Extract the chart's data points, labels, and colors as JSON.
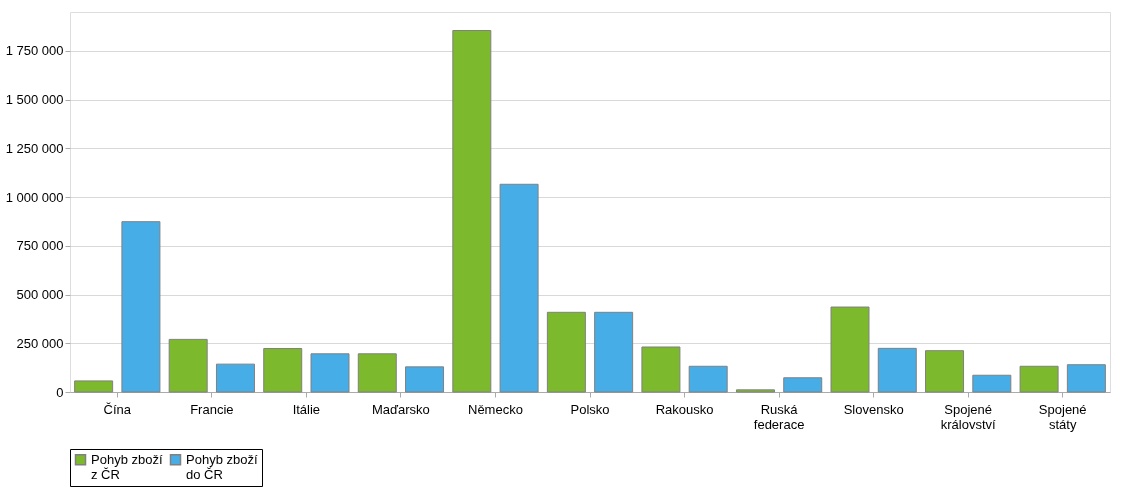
{
  "chart_data": {
    "type": "bar",
    "categories": [
      "Čína",
      "Francie",
      "Itálie",
      "Maďarsko",
      "Německo",
      "Polsko",
      "Rakousko",
      "Ruská federace",
      "Slovensko",
      "Spojené království",
      "Spojené státy"
    ],
    "series": [
      {
        "name": "Pohyb zboží z ČR",
        "color": "#7db92c",
        "values": [
          57000,
          270000,
          223000,
          196000,
          1855000,
          409000,
          231000,
          11000,
          436000,
          212000,
          132000
        ]
      },
      {
        "name": "Pohyb zboží do ČR",
        "color": "#47ade6",
        "values": [
          874000,
          143000,
          196000,
          129000,
          1066000,
          409000,
          132000,
          73000,
          224000,
          86000,
          140000
        ]
      }
    ],
    "ylim": [
      0,
      1950000
    ],
    "yticks": [
      0,
      {
        "value": 250000,
        "label": "250 000"
      },
      {
        "value": 500000,
        "label": "500 000"
      },
      {
        "value": 750000,
        "label": "750 000"
      },
      {
        "value": 1000000,
        "label": "1 000 000"
      },
      {
        "value": 1250000,
        "label": "1 250 000"
      },
      {
        "value": 1500000,
        "label": "1 500 000"
      },
      {
        "value": 1750000,
        "label": "1 750 000"
      }
    ],
    "grid": "y",
    "legend": "bottom"
  }
}
